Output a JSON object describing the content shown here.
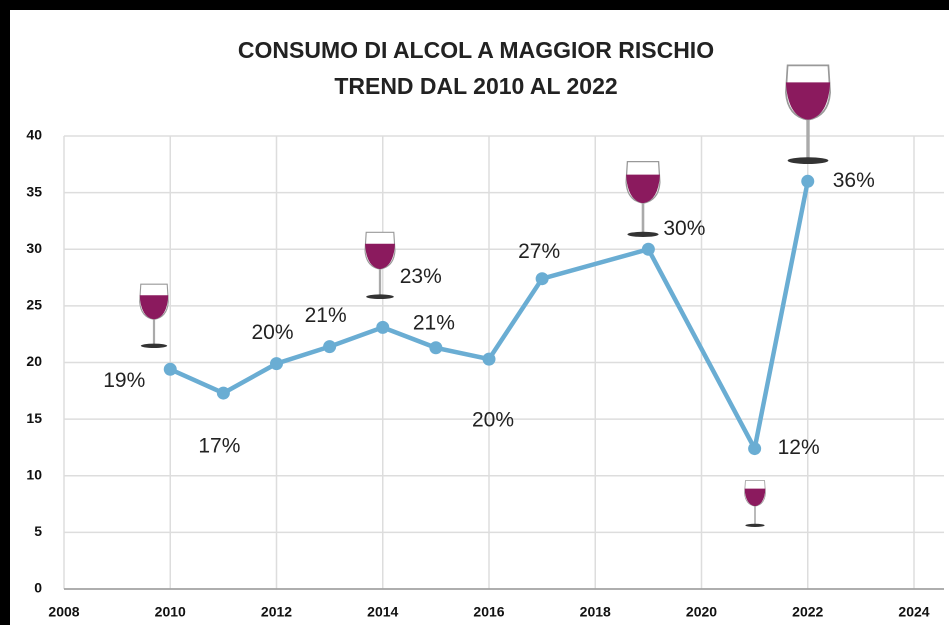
{
  "chart_data": {
    "type": "line",
    "title": [
      "CONSUMO DI ALCOL A MAGGIOR RISCHIO",
      "TREND DAL 2010 AL 2022"
    ],
    "x": [
      2010,
      2011,
      2012,
      2013,
      2014,
      2015,
      2016,
      2017,
      2019,
      2021,
      2022
    ],
    "values": [
      19.4,
      17.3,
      19.9,
      21.4,
      23.1,
      21.3,
      20.3,
      27.4,
      30,
      12.4,
      36
    ],
    "value_labels": [
      "19%",
      "17%",
      "20%",
      "21%",
      "23%",
      "21%",
      "20%",
      "27%",
      "30%",
      "12%",
      "36%"
    ],
    "color": "#6aadd3",
    "xlim": [
      2008,
      2024
    ],
    "xticks": [
      2008,
      2010,
      2012,
      2014,
      2016,
      2018,
      2020,
      2022,
      2024
    ],
    "ylim": [
      0,
      40
    ],
    "yticks": [
      0,
      5,
      10,
      15,
      20,
      25,
      30,
      35,
      40
    ],
    "grid": true
  }
}
